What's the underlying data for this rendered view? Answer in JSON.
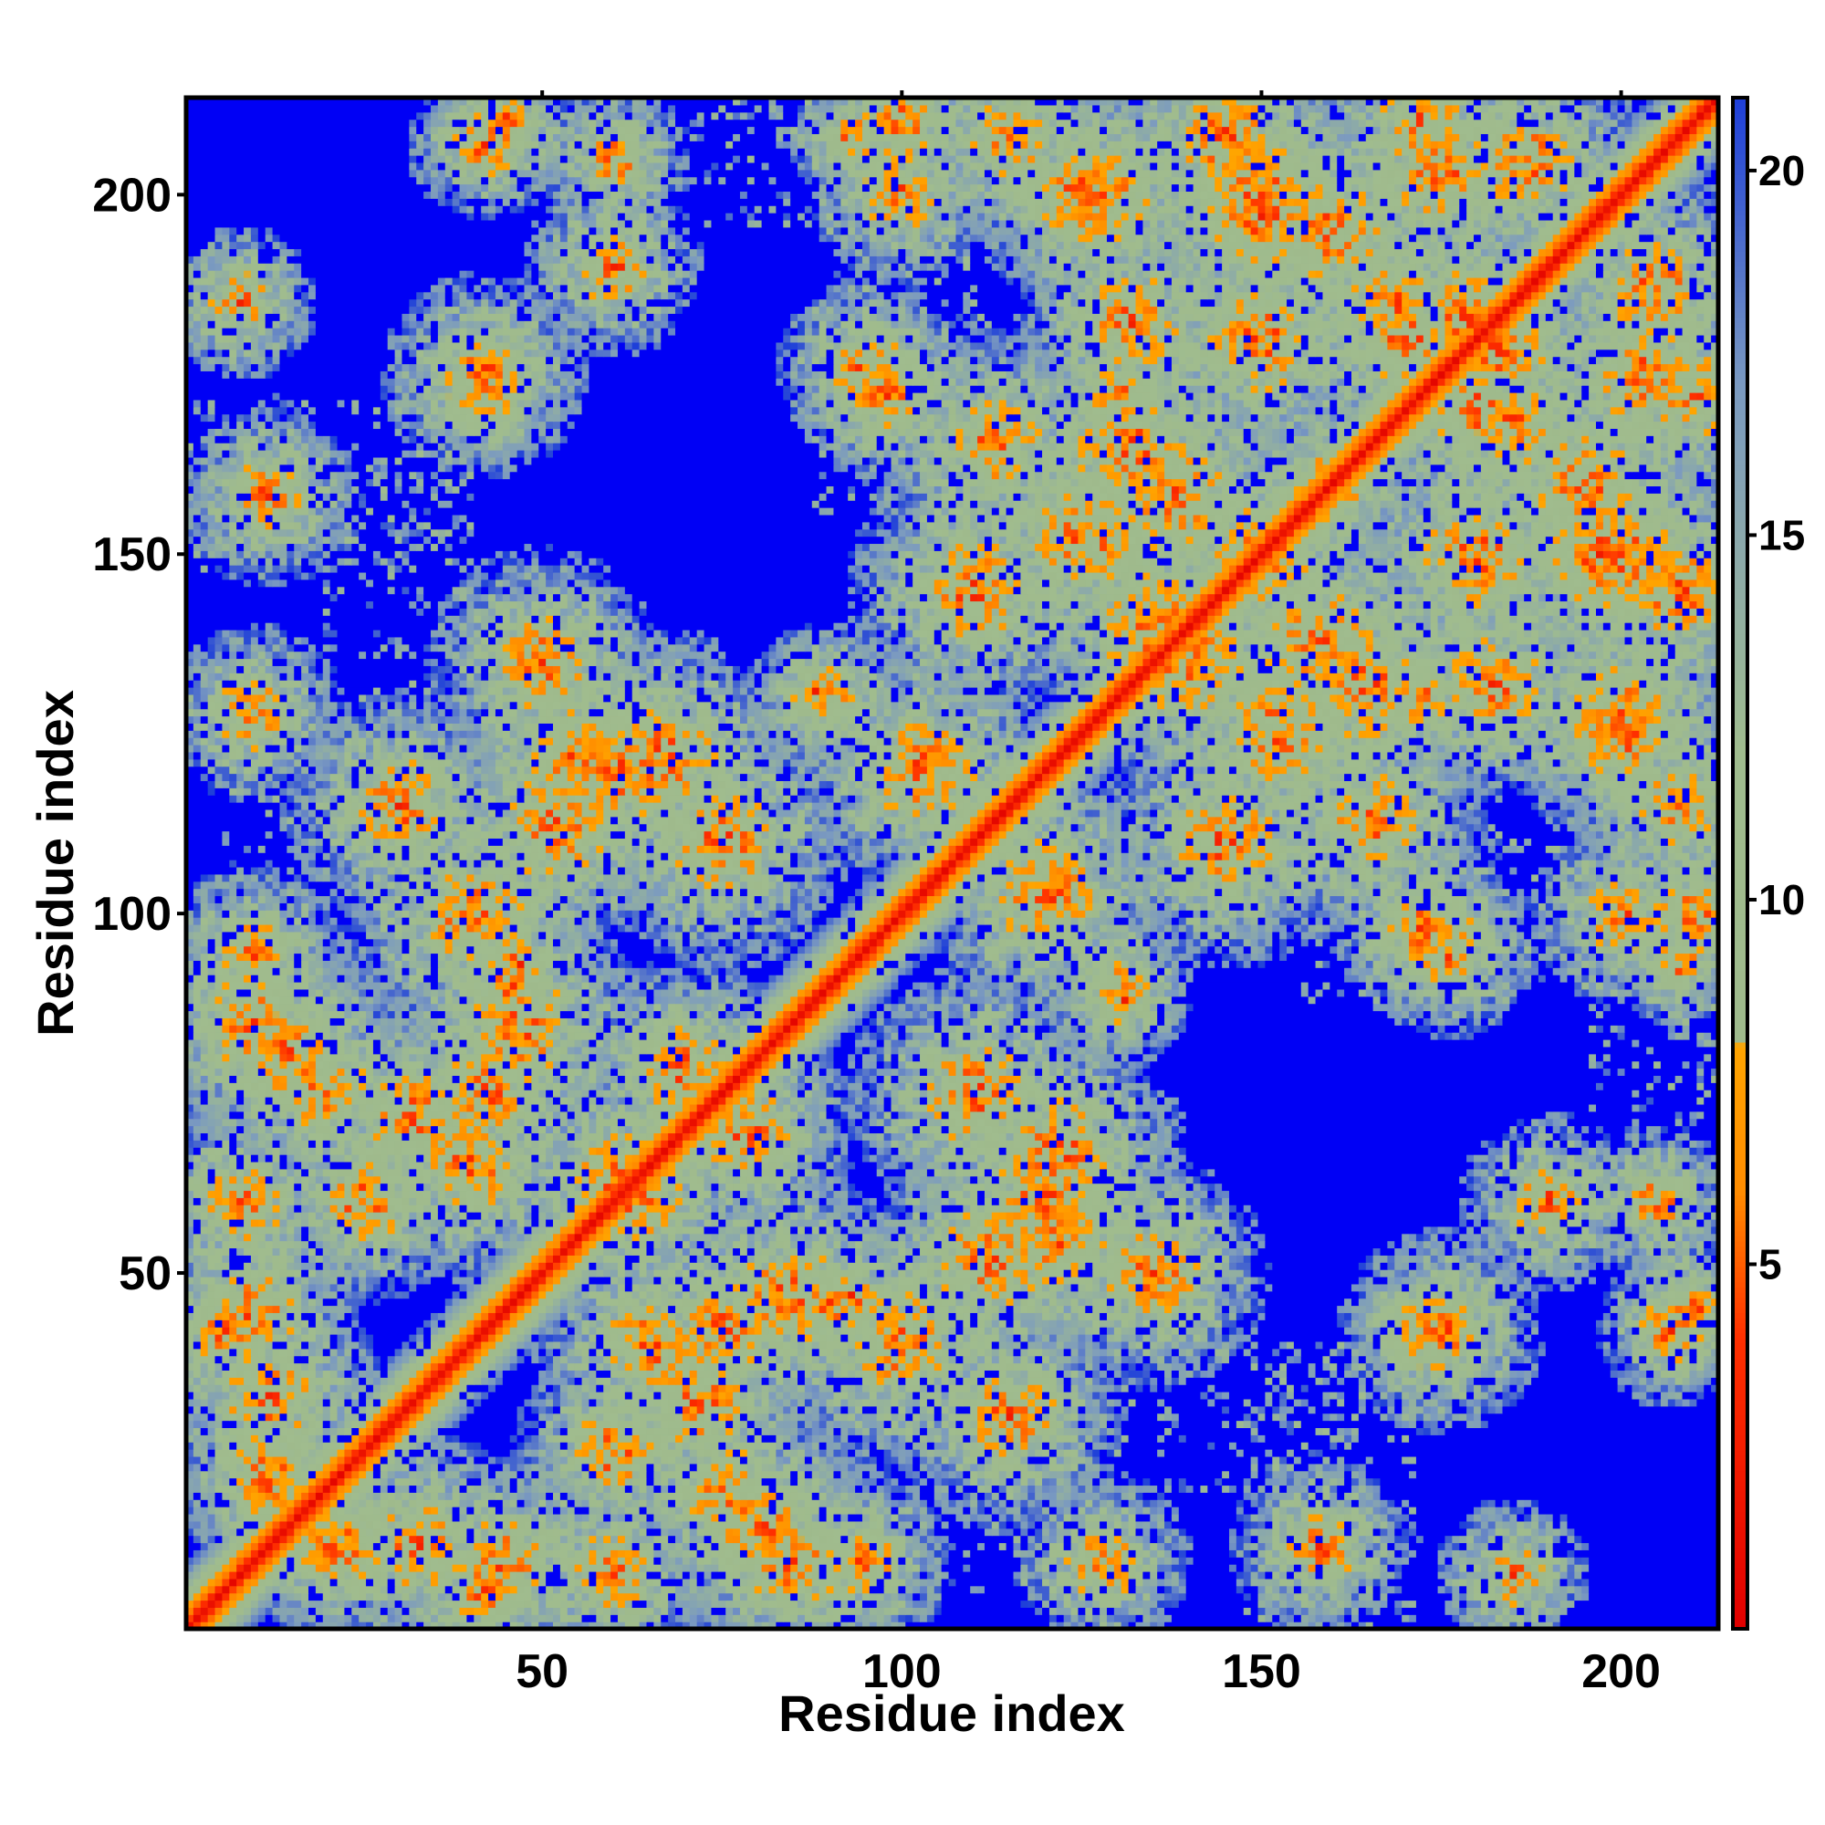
{
  "chart_data": {
    "type": "heatmap",
    "title": "",
    "xlabel": "Residue index",
    "ylabel": "Residue index",
    "xlim": [
      1,
      213
    ],
    "ylim": [
      1,
      213
    ],
    "x_ticks": [
      50,
      100,
      150,
      200
    ],
    "y_ticks": [
      50,
      100,
      150,
      200
    ],
    "colorbar": {
      "ticks": [
        5,
        10,
        15,
        20
      ],
      "range": [
        0,
        21
      ],
      "stops": [
        {
          "value": 0,
          "color": "#e00000"
        },
        {
          "value": 4,
          "color": "#ff3000"
        },
        {
          "value": 6,
          "color": "#ff8c00"
        },
        {
          "value": 8,
          "color": "#ffa500"
        },
        {
          "value": 8.01,
          "color": "#9fba8c"
        },
        {
          "value": 12,
          "color": "#a0bc8e"
        },
        {
          "value": 17,
          "color": "#7b9ac0"
        },
        {
          "value": 21,
          "color": "#1e3fd9"
        }
      ]
    },
    "cap_value": 21,
    "cap_color": "#0000f5",
    "structure": {
      "n_residues": 213,
      "diagonal_core": [
        {
          "offset": 0,
          "value": 1
        },
        {
          "offset": 1,
          "value": 3.8
        },
        {
          "offset": 2,
          "value": 5.6
        },
        {
          "offset": 3,
          "value": 7.2
        },
        {
          "offset": 4,
          "value": 9
        },
        {
          "offset": 5,
          "value": 11
        },
        {
          "offset": 6,
          "value": 13
        },
        {
          "offset": 7,
          "value": 15
        },
        {
          "offset": 8,
          "value": 17
        },
        {
          "offset": 9,
          "value": 19
        }
      ],
      "contact_regions": [
        [
          20,
          12,
          7
        ],
        [
          12,
          22,
          7
        ],
        [
          33,
          12,
          9
        ],
        [
          42,
          6,
          6
        ],
        [
          10,
          45,
          8
        ],
        [
          8,
          60,
          8
        ],
        [
          15,
          80,
          9
        ],
        [
          10,
          95,
          7
        ],
        [
          10,
          128,
          7
        ],
        [
          12,
          158,
          7
        ],
        [
          42,
          173,
          6
        ],
        [
          42,
          207,
          6
        ],
        [
          32,
          72,
          9
        ],
        [
          47,
          93,
          5
        ],
        [
          47,
          84,
          10
        ],
        [
          42,
          75,
          9
        ],
        [
          52,
          112,
          10
        ],
        [
          67,
          122,
          10
        ],
        [
          88,
          131,
          5
        ],
        [
          78,
          70,
          9
        ],
        [
          63,
          60,
          9
        ],
        [
          65,
          40,
          9
        ],
        [
          60,
          25,
          8
        ],
        [
          75,
          20,
          8
        ],
        [
          90,
          45,
          6
        ],
        [
          85,
          10,
          9
        ],
        [
          100,
          40,
          10
        ],
        [
          120,
          60,
          10
        ],
        [
          115,
          30,
          9
        ],
        [
          110,
          75,
          10
        ],
        [
          122,
          55,
          9
        ],
        [
          130,
          90,
          6
        ],
        [
          135,
          50,
          9
        ],
        [
          103,
          120,
          10
        ],
        [
          110,
          145,
          10
        ],
        [
          125,
          152,
          10
        ],
        [
          130,
          172,
          5
        ],
        [
          140,
          135,
          10
        ],
        [
          150,
          150,
          10
        ],
        [
          158,
          138,
          10
        ],
        [
          165,
          132,
          10
        ],
        [
          160,
          160,
          7
        ],
        [
          160,
          195,
          10
        ],
        [
          170,
          180,
          9
        ],
        [
          175,
          203,
          9
        ],
        [
          165,
          113,
          9
        ],
        [
          172,
          98,
          7
        ],
        [
          180,
          150,
          10
        ],
        [
          182,
          132,
          9
        ],
        [
          183,
          178,
          9
        ],
        [
          200,
          150,
          10
        ],
        [
          205,
          187,
          9
        ],
        [
          210,
          172,
          8
        ],
        [
          95,
          176,
          7
        ],
        [
          100,
          200,
          7
        ],
        [
          115,
          208,
          8
        ],
        [
          125,
          200,
          9
        ],
        [
          150,
          197,
          10
        ],
        [
          168,
          185,
          8
        ],
        [
          200,
          128,
          9
        ],
        [
          208,
          145,
          10
        ],
        [
          210,
          100,
          7
        ],
        [
          208,
          93,
          5
        ],
        [
          210,
          45,
          6
        ],
        [
          175,
          42,
          8
        ],
        [
          185,
          8,
          6
        ],
        [
          190,
          60,
          7
        ],
        [
          205,
          60,
          6
        ]
      ],
      "sparse_regions": [
        [
          30,
          150,
          22,
          30
        ],
        [
          100,
          190,
          22,
          45
        ],
        [
          175,
          150,
          30,
          40
        ],
        [
          170,
          100,
          30,
          25
        ],
        [
          120,
          20,
          25,
          30
        ],
        [
          160,
          20,
          25,
          40
        ],
        [
          80,
          210,
          20,
          30
        ]
      ]
    }
  }
}
